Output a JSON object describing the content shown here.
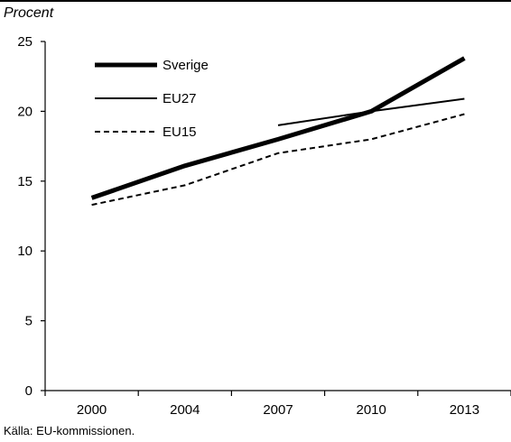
{
  "chart_data": {
    "type": "line",
    "ylabel": "Procent",
    "source": "Källa: EU-kommissionen.",
    "categories": [
      "2000",
      "2004",
      "2007",
      "2010",
      "2013"
    ],
    "yticks": [
      0,
      5,
      10,
      15,
      20,
      25
    ],
    "ylim": [
      0,
      25
    ],
    "grid": false,
    "legend_position": "top-left",
    "series": [
      {
        "name": "Sverige",
        "values": [
          13.8,
          16.1,
          18.0,
          20.0,
          23.8
        ],
        "style": "thick"
      },
      {
        "name": "EU27",
        "values": [
          null,
          null,
          19.0,
          20.0,
          20.9
        ],
        "style": "thin"
      },
      {
        "name": "EU15",
        "values": [
          13.3,
          14.7,
          17.0,
          18.0,
          19.8
        ],
        "style": "dashed"
      }
    ]
  }
}
